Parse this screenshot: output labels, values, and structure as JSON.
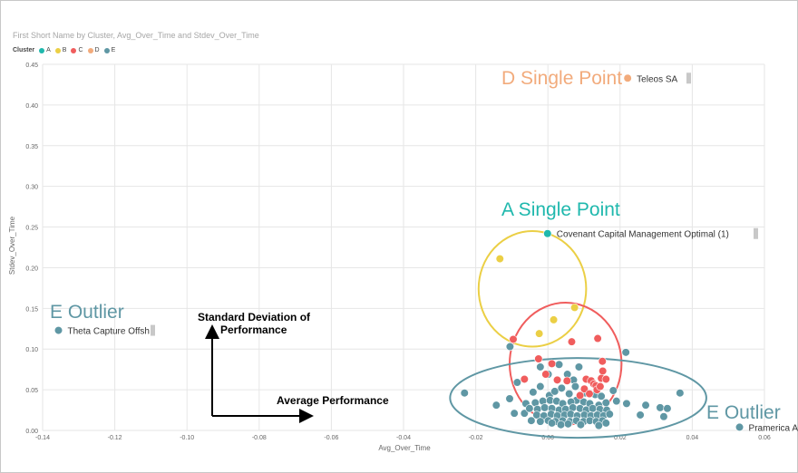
{
  "chart_data": {
    "type": "scatter",
    "title": "First Short Name by Cluster, Avg_Over_Time and Stdev_Over_Time",
    "xlabel": "Avg_Over_Time",
    "ylabel": "Stdev_Over_Time",
    "xlim": [
      -0.14,
      0.06
    ],
    "ylim": [
      0,
      0.45
    ],
    "x_ticks": [
      "-0.14",
      "-0.12",
      "-0.10",
      "-0.08",
      "-0.06",
      "-0.04",
      "-0.02",
      "0.00",
      "0.02",
      "0.04",
      "0.06"
    ],
    "y_ticks": [
      "0.00",
      "0.05",
      "0.10",
      "0.15",
      "0.20",
      "0.25",
      "0.30",
      "0.35",
      "0.40",
      "0.45"
    ],
    "grid": true,
    "legend": {
      "title": "Cluster",
      "placement": "top-left",
      "items": [
        {
          "name": "A",
          "color": "#1fb8ad"
        },
        {
          "name": "B",
          "color": "#ebcf45"
        },
        {
          "name": "C",
          "color": "#f05d5d"
        },
        {
          "name": "D",
          "color": "#f2ab7c"
        },
        {
          "name": "E",
          "color": "#5f97a4"
        }
      ]
    },
    "series": [
      {
        "name": "A",
        "color": "#1fb8ad",
        "points": [
          [
            -0.0001,
            0.242
          ]
        ]
      },
      {
        "name": "B",
        "color": "#ebcf45",
        "points": [
          [
            -0.0133,
            0.211
          ],
          [
            0.0074,
            0.151
          ],
          [
            0.0016,
            0.136
          ],
          [
            -0.0024,
            0.119
          ]
        ]
      },
      {
        "name": "C",
        "color": "#f05d5d",
        "points": [
          [
            -0.0096,
            0.112
          ],
          [
            0.0066,
            0.109
          ],
          [
            0.0138,
            0.113
          ],
          [
            0.0151,
            0.085
          ],
          [
            0.0152,
            0.073
          ],
          [
            0.0148,
            0.064
          ],
          [
            -0.0026,
            0.088
          ],
          [
            0.0011,
            0.082
          ],
          [
            -0.0006,
            0.069
          ],
          [
            -0.0065,
            0.063
          ],
          [
            0.0026,
            0.062
          ],
          [
            0.0053,
            0.061
          ],
          [
            0.0106,
            0.063
          ],
          [
            0.012,
            0.061
          ],
          [
            0.0127,
            0.057
          ],
          [
            0.0133,
            0.055
          ],
          [
            0.0136,
            0.05
          ],
          [
            0.0145,
            0.054
          ],
          [
            0.0161,
            0.063
          ],
          [
            0.0101,
            0.051
          ],
          [
            0.0089,
            0.043
          ],
          [
            0.0115,
            0.045
          ]
        ]
      },
      {
        "name": "D",
        "color": "#f2ab7c",
        "points": [
          [
            0.0221,
            0.433
          ]
        ]
      },
      {
        "name": "E",
        "color": "#5f97a4",
        "points": [
          [
            -0.1356,
            0.123
          ],
          [
            0.0531,
            0.004
          ],
          [
            -0.0105,
            0.103
          ],
          [
            -0.0231,
            0.046
          ],
          [
            -0.0106,
            0.039
          ],
          [
            -0.0085,
            0.059
          ],
          [
            0.0366,
            0.046
          ],
          [
            0.0271,
            0.031
          ],
          [
            0.0311,
            0.028
          ],
          [
            0.0256,
            0.019
          ],
          [
            0.0331,
            0.027
          ],
          [
            0.0321,
            0.017
          ],
          [
            0.0218,
            0.033
          ],
          [
            0.019,
            0.036
          ],
          [
            0.0181,
            0.049
          ],
          [
            0.0216,
            0.096
          ],
          [
            -0.0143,
            0.031
          ],
          [
            -0.0093,
            0.021
          ],
          [
            -0.0065,
            0.021
          ],
          [
            -0.0021,
            0.078
          ],
          [
            0.0031,
            0.081
          ],
          [
            0.0054,
            0.069
          ],
          [
            0.0071,
            0.062
          ],
          [
            0.0086,
            0.078
          ],
          [
            0.0001,
            0.069
          ],
          [
            -0.0021,
            0.054
          ],
          [
            -0.0041,
            0.047
          ],
          [
            0.0004,
            0.043
          ],
          [
            0.0019,
            0.048
          ],
          [
            0.0038,
            0.052
          ],
          [
            0.0059,
            0.045
          ],
          [
            0.0076,
            0.054
          ],
          [
            0.0104,
            0.046
          ],
          [
            0.0131,
            0.044
          ],
          [
            0.0148,
            0.042
          ],
          [
            0.0079,
            0.037
          ],
          [
            0.0099,
            0.035
          ],
          [
            0.0116,
            0.033
          ],
          [
            0.0141,
            0.031
          ],
          [
            0.0161,
            0.034
          ],
          [
            -0.0061,
            0.033
          ],
          [
            -0.0035,
            0.034
          ],
          [
            -0.0014,
            0.036
          ],
          [
            0.0006,
            0.037
          ],
          [
            0.0024,
            0.036
          ],
          [
            0.0041,
            0.033
          ],
          [
            0.0064,
            0.035
          ],
          [
            -0.0051,
            0.027
          ],
          [
            -0.0029,
            0.026
          ],
          [
            -0.0009,
            0.028
          ],
          [
            0.0011,
            0.027
          ],
          [
            0.0031,
            0.025
          ],
          [
            0.0049,
            0.026
          ],
          [
            0.0069,
            0.028
          ],
          [
            0.0089,
            0.027
          ],
          [
            0.0106,
            0.025
          ],
          [
            0.0124,
            0.027
          ],
          [
            0.0144,
            0.026
          ],
          [
            0.0163,
            0.025
          ],
          [
            -0.0031,
            0.019
          ],
          [
            -0.0011,
            0.018
          ],
          [
            0.0009,
            0.02
          ],
          [
            0.0026,
            0.018
          ],
          [
            0.0046,
            0.019
          ],
          [
            0.0063,
            0.02
          ],
          [
            0.0081,
            0.018
          ],
          [
            0.0101,
            0.019
          ],
          [
            0.0119,
            0.018
          ],
          [
            0.0137,
            0.019
          ],
          [
            0.0154,
            0.018
          ],
          [
            0.0171,
            0.02
          ],
          [
            -0.0046,
            0.012
          ],
          [
            -0.0021,
            0.011
          ],
          [
            0.0001,
            0.012
          ],
          [
            0.0021,
            0.011
          ],
          [
            0.0041,
            0.012
          ],
          [
            0.0061,
            0.011
          ],
          [
            0.0079,
            0.012
          ],
          [
            0.0099,
            0.011
          ],
          [
            0.0116,
            0.012
          ],
          [
            0.0134,
            0.011
          ],
          [
            0.0151,
            0.012
          ],
          [
            0.0141,
            0.006
          ],
          [
            0.0056,
            0.008
          ],
          [
            0.0091,
            0.007
          ],
          [
            0.0036,
            0.007
          ],
          [
            0.0161,
            0.009
          ],
          [
            0.0011,
            0.009
          ]
        ]
      }
    ],
    "point_labels": [
      {
        "text": "Teleos SA",
        "x": 0.0221,
        "y": 0.433
      },
      {
        "text": "Covenant Capital Management Optimal (1)",
        "x": -0.0001,
        "y": 0.242
      },
      {
        "text": "Theta Capture Offsh",
        "x": -0.1356,
        "y": 0.123
      },
      {
        "text": "Pramerica Alpha",
        "x": 0.0531,
        "y": 0.004
      }
    ],
    "annotations": {
      "d_single_point": "D Single Point",
      "a_single_point": "A Single Point",
      "e_outlier_left": "E Outlier",
      "e_outlier_right": "E Outlier",
      "y_arrow_label": "Standard Deviation of Performance",
      "x_arrow_label": "Average Performance"
    },
    "cluster_ellipses": [
      {
        "cluster": "B",
        "color": "#ebcf45",
        "cx": -0.0043,
        "cy": 0.174,
        "rx": 0.0149,
        "ry": 0.071
      },
      {
        "cluster": "C",
        "color": "#f05d5d",
        "cx": 0.0049,
        "cy": 0.082,
        "rx": 0.0155,
        "ry": 0.075
      },
      {
        "cluster": "E",
        "color": "#5f97a4",
        "cx": 0.0084,
        "cy": 0.04,
        "rx": 0.0355,
        "ry": 0.049
      }
    ]
  }
}
